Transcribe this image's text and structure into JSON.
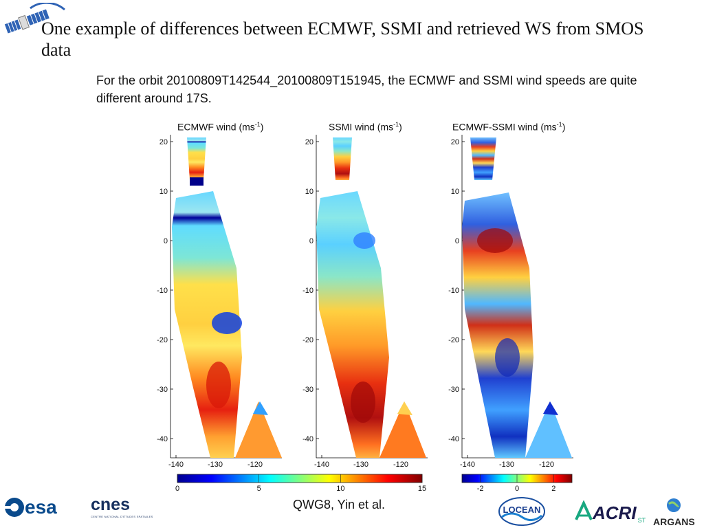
{
  "slide": {
    "title": "One example of differences between ECMWF, SSMI and retrieved WS from SMOS data",
    "body": "For the orbit 20100809T142544_20100809T151945, the ECMWF and SSMI wind speeds are quite different around 17S.",
    "credit": "QWG8, Yin et al."
  },
  "figure": {
    "panels": [
      {
        "title_main": "ECMWF wind (ms",
        "title_sup": "-1",
        "title_end": ")"
      },
      {
        "title_main": "SSMI wind (ms",
        "title_sup": "-1",
        "title_end": ")"
      },
      {
        "title_main": "ECMWF-SSMI wind (ms",
        "title_sup": "-1",
        "title_end": ")"
      }
    ],
    "yticks": [
      "20",
      "10",
      "0",
      "-10",
      "-20",
      "-30",
      "-40"
    ],
    "xticks": [
      "-140",
      "-130",
      "-120"
    ],
    "colorbar_wind": {
      "ticks": [
        "0",
        "5",
        "10",
        "15"
      ],
      "range": [
        0,
        15
      ]
    },
    "colorbar_diff": {
      "ticks": [
        "-2",
        "0",
        "2"
      ],
      "range": [
        -3,
        3
      ]
    },
    "colormap": [
      "#00008f",
      "#0000ff",
      "#00ffff",
      "#ffff00",
      "#ff0000",
      "#800000"
    ]
  },
  "logos": {
    "esa": "esa",
    "cnes": "cnes",
    "cnes_sub": "CENTRE NATIONAL D'ÉTUDES SPATIALES",
    "locean": "LOCEAN",
    "acri": "ACRI",
    "acri_sub": "ST",
    "argans": "ARGANS"
  }
}
